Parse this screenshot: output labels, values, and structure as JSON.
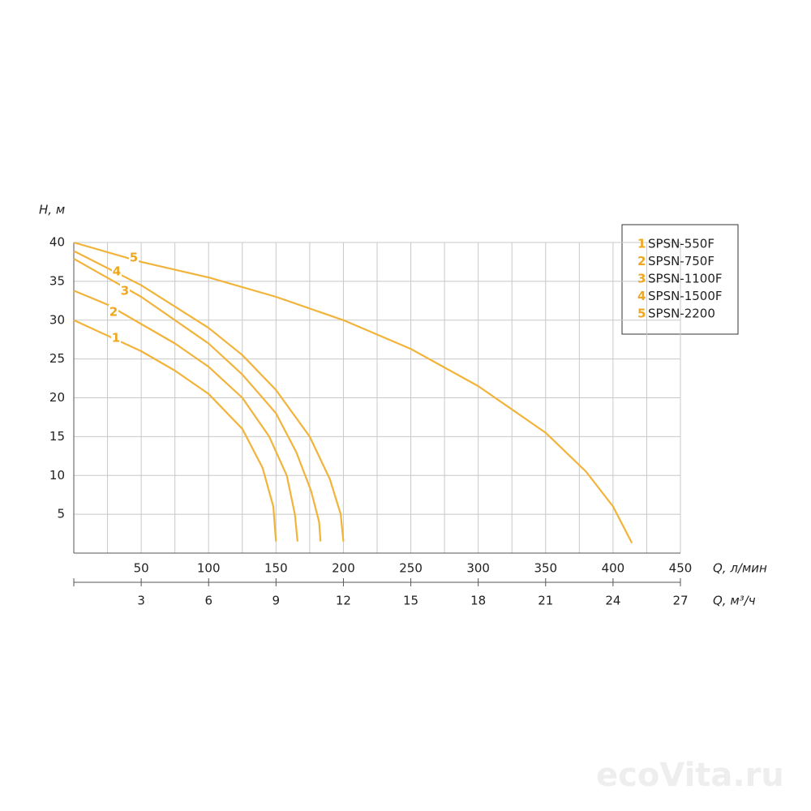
{
  "chart_data": {
    "type": "line",
    "ylabel": "H, м",
    "xlabel": "Q, л/мин",
    "x2label": "Q, м³/ч",
    "xlim": [
      0,
      450
    ],
    "xticks": [
      50,
      100,
      150,
      200,
      250,
      300,
      350,
      400,
      450
    ],
    "xgrid": [
      25,
      50,
      75,
      100,
      125,
      150,
      175,
      200,
      225,
      250,
      275,
      300,
      325,
      350,
      375,
      400,
      425,
      450
    ],
    "x2lim": [
      0,
      27
    ],
    "x2ticks": [
      3,
      6,
      9,
      12,
      15,
      18,
      21,
      24,
      27
    ],
    "ylim": [
      0,
      40
    ],
    "yticks": [
      5,
      10,
      15,
      20,
      25,
      30,
      35,
      40
    ],
    "grid": true,
    "legend": "upper right",
    "series": [
      {
        "label": "1",
        "name": "SPSN-550F",
        "color": "#f2b33a",
        "x": [
          0,
          25,
          50,
          75,
          100,
          125,
          140,
          148,
          150
        ],
        "values": [
          30,
          28,
          26,
          23.5,
          20.5,
          16,
          11,
          6,
          1.5
        ]
      },
      {
        "label": "2",
        "name": "SPSN-750F",
        "color": "#f2b33a",
        "x": [
          0,
          25,
          50,
          75,
          100,
          125,
          145,
          158,
          164,
          166
        ],
        "values": [
          33.8,
          32,
          29.5,
          27,
          24,
          20,
          15,
          10,
          5,
          1.5
        ]
      },
      {
        "label": "3",
        "name": "SPSN-1100F",
        "color": "#f2b33a",
        "x": [
          0,
          50,
          100,
          125,
          150,
          165,
          176,
          182,
          183
        ],
        "values": [
          37.9,
          33,
          27,
          23,
          18,
          13,
          8,
          4,
          1.5
        ]
      },
      {
        "label": "4",
        "name": "SPSN-1500F",
        "color": "#f2b33a",
        "x": [
          0,
          50,
          100,
          125,
          150,
          175,
          190,
          198,
          200
        ],
        "values": [
          38.9,
          34.5,
          29,
          25.5,
          21,
          15,
          9.5,
          5,
          1.5
        ]
      },
      {
        "label": "5",
        "name": "SPSN-2200",
        "color": "#f2b33a",
        "x": [
          0,
          50,
          100,
          150,
          200,
          250,
          300,
          350,
          380,
          400,
          414
        ],
        "values": [
          40,
          37.5,
          35.5,
          33,
          30,
          26.3,
          21.5,
          15.5,
          10.5,
          6,
          1.3
        ]
      }
    ]
  },
  "watermark": "ecoVita.ru"
}
